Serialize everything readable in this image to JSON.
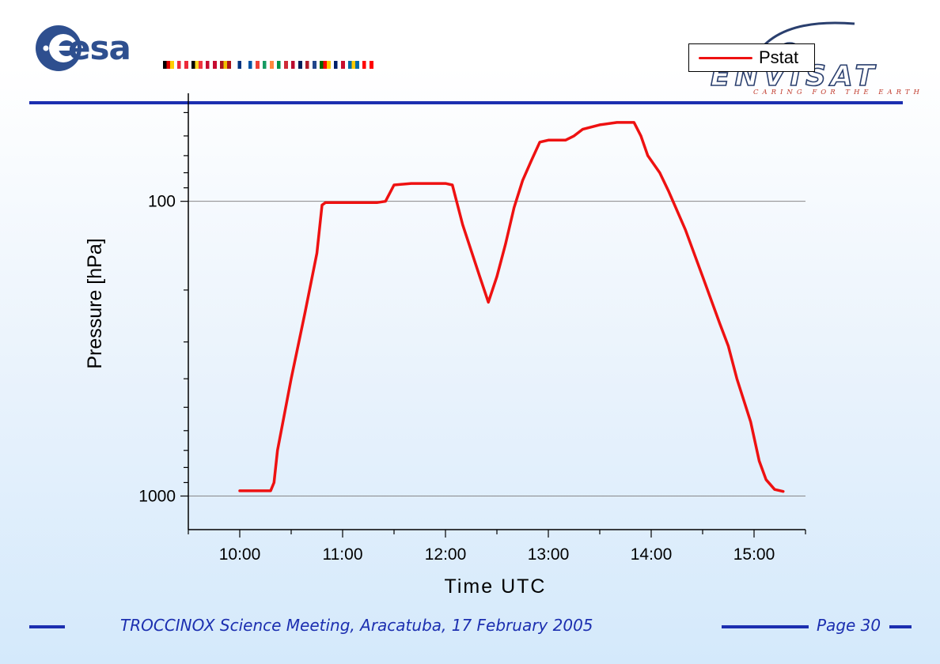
{
  "header": {
    "logo_text": "esa",
    "mission_logo_text": "ENVISAT",
    "mission_tagline": "CARING FOR THE EARTH",
    "flag_colors": [
      [
        "#000000",
        "#dd0000",
        "#ffce00"
      ],
      [
        "#ed2939",
        "#ffffff",
        "#ed2939"
      ],
      [
        "#000000",
        "#fdda24",
        "#ef3340"
      ],
      [
        "#c60c30",
        "#ffffff",
        "#c60c30"
      ],
      [
        "#aa151b",
        "#f1bf00",
        "#aa151b"
      ],
      [
        "#ffffff",
        "#003580",
        "#ffffff"
      ],
      [
        "#0055a4",
        "#ffffff",
        "#ef4135"
      ],
      [
        "#169b62",
        "#ffffff",
        "#ff883e"
      ],
      [
        "#009246",
        "#ffffff",
        "#ce2b37"
      ],
      [
        "#ba0c2f",
        "#ffffff",
        "#00205b"
      ],
      [
        "#ae1c28",
        "#ffffff",
        "#21468b"
      ],
      [
        "#006600",
        "#ff0000",
        "#ffcc00"
      ],
      [
        "#012169",
        "#ffffff",
        "#c8102e"
      ],
      [
        "#006aa7",
        "#fecc00",
        "#006aa7"
      ],
      [
        "#ff0000",
        "#ffffff",
        "#ff0000"
      ]
    ]
  },
  "footer": {
    "meeting_text": "TROCCINOX Science Meeting, Aracatuba, 17 February 2005",
    "page_text": "Page 30"
  },
  "colors": {
    "accent": "#1c2fb0",
    "series": "#ee1111"
  },
  "chart_data": {
    "type": "line",
    "title": "",
    "xlabel": "Time UTC",
    "ylabel": "Pressure [hPa]",
    "y_scale": "log",
    "y_reversed": true,
    "ylim": [
      1300,
      43
    ],
    "xlim": [
      "09:30",
      "15:30"
    ],
    "x_ticks": [
      "10:00",
      "11:00",
      "12:00",
      "13:00",
      "14:00",
      "15:00"
    ],
    "y_ticks": [
      "100",
      "1000"
    ],
    "grid_y_values": [
      100,
      1000
    ],
    "legend": {
      "position": "top-right",
      "entries": [
        "Pstat"
      ]
    },
    "series": [
      {
        "name": "Pstat",
        "points": [
          [
            "10:00",
            960
          ],
          [
            "10:18",
            960
          ],
          [
            "10:20",
            900
          ],
          [
            "10:22",
            700
          ],
          [
            "10:30",
            400
          ],
          [
            "10:38",
            240
          ],
          [
            "10:45",
            150
          ],
          [
            "10:48",
            103
          ],
          [
            "10:50",
            101
          ],
          [
            "11:00",
            101
          ],
          [
            "11:20",
            101
          ],
          [
            "11:25",
            100
          ],
          [
            "11:30",
            88
          ],
          [
            "11:40",
            87
          ],
          [
            "12:00",
            87
          ],
          [
            "12:04",
            88
          ],
          [
            "12:10",
            120
          ],
          [
            "12:20",
            180
          ],
          [
            "12:25",
            220
          ],
          [
            "12:30",
            180
          ],
          [
            "12:35",
            140
          ],
          [
            "12:40",
            105
          ],
          [
            "12:45",
            85
          ],
          [
            "12:50",
            73
          ],
          [
            "12:55",
            63
          ],
          [
            "13:00",
            62
          ],
          [
            "13:10",
            62
          ],
          [
            "13:15",
            60
          ],
          [
            "13:20",
            57
          ],
          [
            "13:30",
            55
          ],
          [
            "13:40",
            54
          ],
          [
            "13:50",
            54
          ],
          [
            "13:54",
            60
          ],
          [
            "13:58",
            70
          ],
          [
            "14:05",
            80
          ],
          [
            "14:10",
            92
          ],
          [
            "14:20",
            125
          ],
          [
            "14:30",
            180
          ],
          [
            "14:40",
            260
          ],
          [
            "14:45",
            310
          ],
          [
            "14:50",
            400
          ],
          [
            "14:58",
            560
          ],
          [
            "15:03",
            760
          ],
          [
            "15:07",
            880
          ],
          [
            "15:12",
            950
          ],
          [
            "15:17",
            965
          ]
        ]
      }
    ]
  }
}
